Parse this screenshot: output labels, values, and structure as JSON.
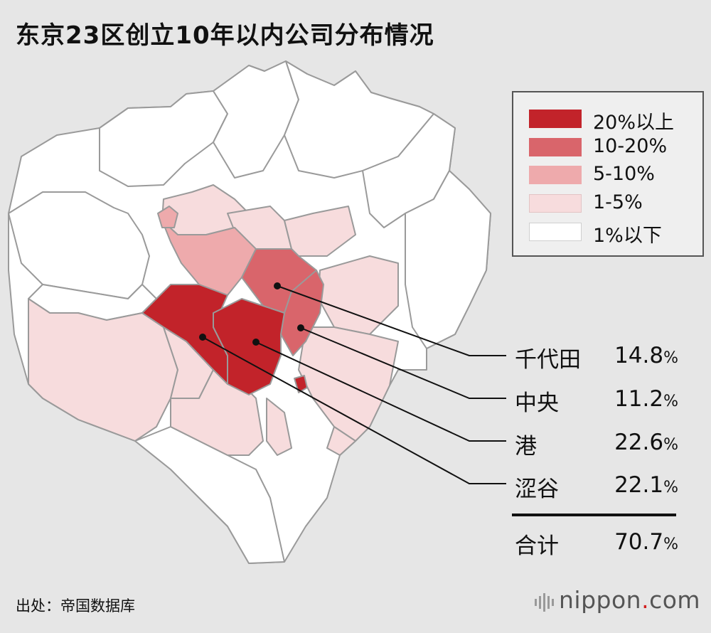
{
  "title": "东京23区创立10年以内公司分布情况",
  "colors": {
    "background": "#e6e6e6",
    "ward_border": "#9a9a9a",
    "over_20": "#c2232a",
    "p10_20": "#d9656b",
    "p5_10": "#eeaaac",
    "p1_5": "#f7dcdd",
    "under_1": "#ffffff"
  },
  "legend": [
    {
      "label": "20%以上",
      "color": "#c2232a"
    },
    {
      "label": "10-20%",
      "color": "#d9656b"
    },
    {
      "label": "5-10%",
      "color": "#eeaaac"
    },
    {
      "label": "1-5%",
      "color": "#f7dcdd"
    },
    {
      "label": "1%以下",
      "color": "#ffffff"
    }
  ],
  "wards": [
    {
      "name": "千代田",
      "value": "14.8",
      "unit": "%"
    },
    {
      "name": "中央",
      "value": "11.2",
      "unit": "%"
    },
    {
      "name": "港",
      "value": "22.6",
      "unit": "%"
    },
    {
      "name": "涩谷",
      "value": "22.1",
      "unit": "%"
    }
  ],
  "total": {
    "label": "合计",
    "value": "70.7",
    "unit": "%"
  },
  "source": "出处：帝国数据库",
  "brand": {
    "name": "nippon",
    "dot": ".",
    "suffix": "com"
  }
}
